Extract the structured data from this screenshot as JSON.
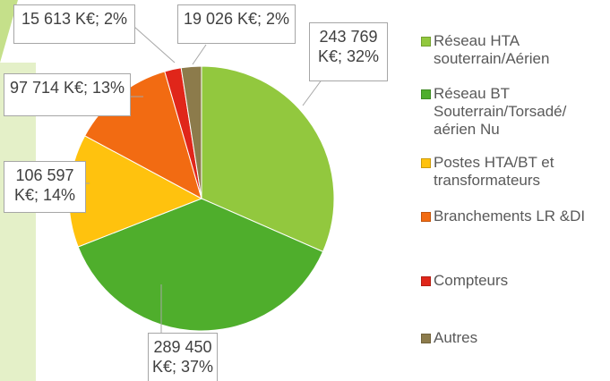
{
  "chart_data": {
    "type": "pie",
    "categories": [
      "Réseau HTA souterrain/Aérien",
      "Réseau BT Souterrain/Torsadé/ aérien Nu",
      "Postes HTA/BT et transformateurs",
      "Branchements LR &DI",
      "Compteurs",
      "Autres"
    ],
    "values": [
      243769,
      289450,
      106597,
      97714,
      15613,
      19026
    ],
    "value_labels": [
      "243 769 K€; 32%",
      "289 450 K€; 37%",
      "106 597 K€; 14%",
      "97 714 K€; 13%",
      "15 613 K€; 2%",
      "19 026 K€; 2%"
    ],
    "colors": [
      "#92c83e",
      "#4fae2c",
      "#ffc20e",
      "#f26b12",
      "#e0261a",
      "#8c7b4b"
    ],
    "legend": "right"
  }
}
